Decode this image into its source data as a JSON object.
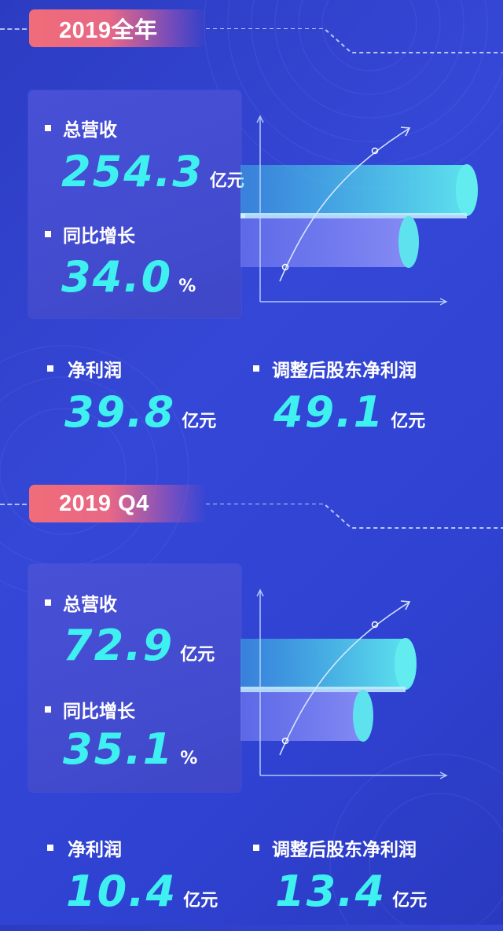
{
  "sections": [
    {
      "tag": "2019全年",
      "total_revenue": {
        "label": "总营收",
        "value": "254.3",
        "unit": "亿元"
      },
      "yoy_growth": {
        "label": "同比增长",
        "value": "34.0",
        "unit": "%"
      },
      "net_profit": {
        "label": "净利润",
        "value": "39.8",
        "unit": "亿元"
      },
      "adjusted_net_profit": {
        "label": "调整后股东净利润",
        "value": "49.1",
        "unit": "亿元"
      }
    },
    {
      "tag": "2019 Q4",
      "total_revenue": {
        "label": "总营收",
        "value": "72.9",
        "unit": "亿元"
      },
      "yoy_growth": {
        "label": "同比增长",
        "value": "35.1",
        "unit": "%"
      },
      "net_profit": {
        "label": "净利润",
        "value": "10.4",
        "unit": "亿元"
      },
      "adjusted_net_profit": {
        "label": "调整后股东净利润",
        "value": "13.4",
        "unit": "亿元"
      }
    }
  ],
  "colors": {
    "accent": "#3ff0f0",
    "tag": "#f06c79",
    "background": "#3142cf"
  }
}
